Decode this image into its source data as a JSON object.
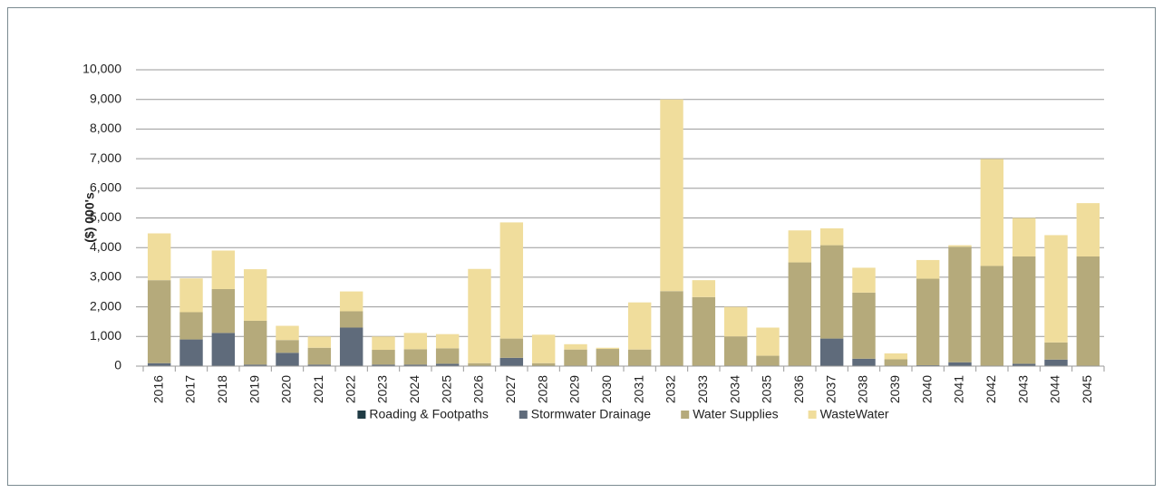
{
  "chart_data": {
    "type": "stacked_bar",
    "y_label": "($) 000's",
    "categories": [
      "2016",
      "2017",
      "2018",
      "2019",
      "2020",
      "2021",
      "2022",
      "2023",
      "2024",
      "2025",
      "2026",
      "2027",
      "2028",
      "2029",
      "2030",
      "2031",
      "2032",
      "2033",
      "2034",
      "2035",
      "2036",
      "2037",
      "2038",
      "2039",
      "2040",
      "2041",
      "2042",
      "2043",
      "2044",
      "2045"
    ],
    "series": [
      {
        "name": "Roading & Footpaths",
        "color": "#1f3b44",
        "values": [
          0,
          0,
          0,
          0,
          0,
          0,
          0,
          0,
          0,
          0,
          0,
          0,
          0,
          0,
          0,
          0,
          0,
          0,
          0,
          0,
          0,
          0,
          0,
          0,
          0,
          0,
          0,
          0,
          0,
          0
        ]
      },
      {
        "name": "Stormwater Drainage",
        "color": "#5f6b7b",
        "values": [
          100,
          900,
          1120,
          50,
          450,
          50,
          1300,
          50,
          50,
          80,
          0,
          280,
          0,
          0,
          0,
          0,
          0,
          0,
          0,
          0,
          0,
          930,
          250,
          0,
          30,
          130,
          0,
          80,
          220,
          0
        ]
      },
      {
        "name": "Water Supplies",
        "color": "#b5aa7b",
        "values": [
          2800,
          920,
          1480,
          1480,
          430,
          570,
          550,
          500,
          520,
          520,
          100,
          650,
          100,
          560,
          580,
          560,
          2530,
          2330,
          1000,
          350,
          3500,
          3150,
          2230,
          230,
          2920,
          3900,
          3380,
          3620,
          580,
          3700
        ]
      },
      {
        "name": "WasteWater",
        "color": "#f0dd9c",
        "values": [
          1580,
          1140,
          1300,
          1740,
          480,
          380,
          670,
          450,
          550,
          480,
          3180,
          3920,
          960,
          180,
          40,
          1590,
          6470,
          570,
          1000,
          950,
          1080,
          570,
          840,
          200,
          630,
          50,
          3610,
          1300,
          3620,
          1800
        ]
      }
    ],
    "ylim": [
      0,
      10000
    ],
    "yticks": [
      0,
      {
        "value": 1000,
        "label": "1,000"
      },
      {
        "value": 2000,
        "label": "2,000"
      },
      {
        "value": 3000,
        "label": "3,000"
      },
      {
        "value": 4000,
        "label": "4,000"
      },
      {
        "value": 5000,
        "label": "5,000"
      },
      {
        "value": 6000,
        "label": "6,000"
      },
      {
        "value": 7000,
        "label": "7,000"
      },
      {
        "value": 8000,
        "label": "8,000"
      },
      {
        "value": 9000,
        "label": "9,000"
      },
      {
        "value": 10000,
        "label": "10,000"
      }
    ],
    "grid": true,
    "legend": "bottom"
  }
}
